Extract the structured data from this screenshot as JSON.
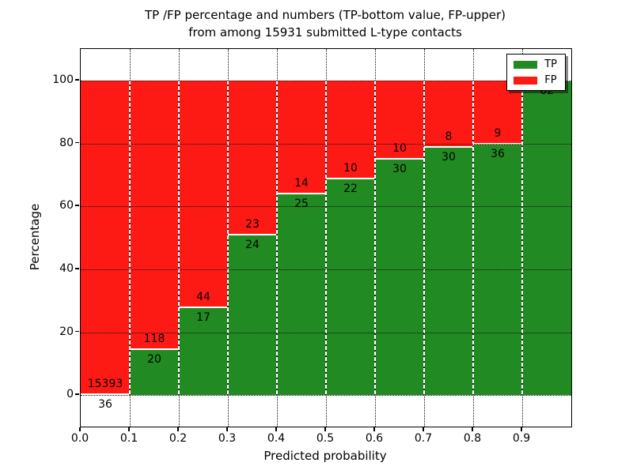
{
  "figure": {
    "title_line1": "TP /FP percentage and numbers (TP-bottom value, FP-upper)",
    "title_line2": "from among 15931 submitted L-type contacts"
  },
  "axes": {
    "x_label": "Predicted probability",
    "y_label": "Percentage",
    "x_tick_labels": [
      "0.0",
      "0.1",
      "0.2",
      "0.3",
      "0.4",
      "0.5",
      "0.6",
      "0.7",
      "0.8",
      "0.9"
    ],
    "x_tick_values": [
      0.0,
      0.1,
      0.2,
      0.3,
      0.4,
      0.5,
      0.6,
      0.7,
      0.8,
      0.9
    ],
    "y_tick_labels": [
      "0",
      "20",
      "40",
      "60",
      "80",
      "100"
    ],
    "y_tick_values": [
      0,
      20,
      40,
      60,
      80,
      100
    ],
    "xlim": [
      0.0,
      1.0
    ],
    "ylim": [
      -10,
      110
    ]
  },
  "colors": {
    "tp": "#228a22",
    "fp": "#fd1a15",
    "grid": "#111111"
  },
  "legend": {
    "items": [
      {
        "label": "TP",
        "color": "#228a22"
      },
      {
        "label": "FP",
        "color": "#fd1a15"
      }
    ]
  },
  "chart_data": {
    "type": "bar",
    "stacked": true,
    "normalized": "percent of bin total",
    "title": "TP /FP percentage and numbers (TP-bottom value, FP-upper) from among 15931 submitted L-type contacts",
    "xlabel": "Predicted probability",
    "ylabel": "Percentage",
    "xlim": [
      0.0,
      1.0
    ],
    "ylim": [
      -10,
      110
    ],
    "grid": true,
    "legend_position": "upper right",
    "total_submitted": 15931,
    "bin_width": 0.1,
    "bin_starts": [
      0.0,
      0.1,
      0.2,
      0.3,
      0.4,
      0.5,
      0.6,
      0.7,
      0.8,
      0.9
    ],
    "series": [
      {
        "name": "TP",
        "color": "#228a22",
        "counts": [
          36,
          20,
          17,
          24,
          25,
          22,
          30,
          30,
          36,
          62
        ],
        "labels": [
          "36",
          "20",
          "17",
          "24",
          "25",
          "22",
          "30",
          "30",
          "36",
          "62"
        ],
        "percent": [
          0.23,
          14.49,
          27.87,
          51.06,
          64.1,
          68.75,
          75.0,
          78.95,
          80.0,
          100.0
        ]
      },
      {
        "name": "FP",
        "color": "#fd1a15",
        "counts": [
          15393,
          118,
          44,
          23,
          14,
          10,
          10,
          8,
          9,
          null
        ],
        "labels": [
          "15393",
          "118",
          "44",
          "23",
          "14",
          "10",
          "10",
          "8",
          "9",
          ""
        ],
        "percent": [
          99.77,
          85.51,
          72.13,
          48.94,
          35.9,
          31.25,
          25.0,
          21.05,
          20.0,
          0.0
        ]
      }
    ]
  }
}
